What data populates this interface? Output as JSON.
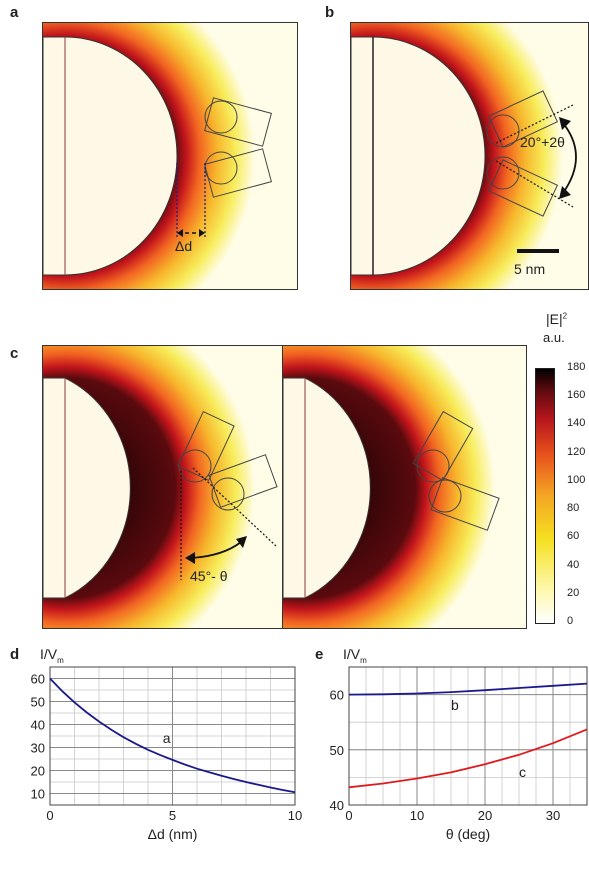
{
  "panels": {
    "a": {
      "label": "a",
      "annotation": "Δd"
    },
    "b": {
      "label": "b",
      "annotation": "20°+2θ",
      "scalebar": "5 nm"
    },
    "c": {
      "label": "c",
      "annotation": "45°- θ"
    }
  },
  "colorbar": {
    "title": "|E|",
    "title_sup": "2",
    "unit": "a.u.",
    "ticks": [
      "180",
      "160",
      "140",
      "120",
      "100",
      "80",
      "60",
      "40",
      "20",
      "0"
    ]
  },
  "chart_data": [
    {
      "panel": "d",
      "type": "line",
      "ylabel": "I/V",
      "ylabel_sub": "m",
      "xlabel": "Δd (nm)",
      "xlim": [
        0,
        10
      ],
      "ylim": [
        5,
        65
      ],
      "xticks": [
        "0",
        "5",
        "10"
      ],
      "yticks": [
        "10",
        "20",
        "30",
        "40",
        "50",
        "60"
      ],
      "grid": true,
      "series": [
        {
          "name": "a",
          "color": "#1a1a8c",
          "x": [
            0,
            0.5,
            1,
            1.5,
            2,
            2.5,
            3,
            3.5,
            4,
            4.5,
            5,
            5.5,
            6,
            6.5,
            7,
            7.5,
            8,
            8.5,
            9,
            9.5,
            10
          ],
          "y": [
            60,
            54.5,
            49.6,
            45.2,
            41.3,
            37.7,
            34.5,
            31.6,
            29.0,
            26.7,
            24.6,
            22.6,
            20.8,
            19.2,
            17.7,
            16.3,
            15.0,
            13.8,
            12.6,
            11.5,
            10.5
          ]
        }
      ]
    },
    {
      "panel": "e",
      "type": "line",
      "ylabel": "I/V",
      "ylabel_sub": "m",
      "xlabel": "θ (deg)",
      "xlim": [
        0,
        35
      ],
      "ylim": [
        40,
        65
      ],
      "xticks": [
        "0",
        "10",
        "20",
        "30"
      ],
      "yticks": [
        "40",
        "50",
        "60"
      ],
      "grid": true,
      "series": [
        {
          "name": "b",
          "color": "#1a1a8c",
          "x": [
            0,
            5,
            10,
            15,
            20,
            25,
            30,
            35
          ],
          "y": [
            60.0,
            60.05,
            60.2,
            60.45,
            60.8,
            61.2,
            61.6,
            62.0
          ]
        },
        {
          "name": "c",
          "color": "#e0191c",
          "x": [
            0,
            5,
            10,
            15,
            20,
            25,
            30,
            35
          ],
          "y": [
            43.2,
            43.9,
            44.8,
            45.9,
            47.4,
            49.1,
            51.2,
            53.7
          ]
        }
      ]
    }
  ]
}
